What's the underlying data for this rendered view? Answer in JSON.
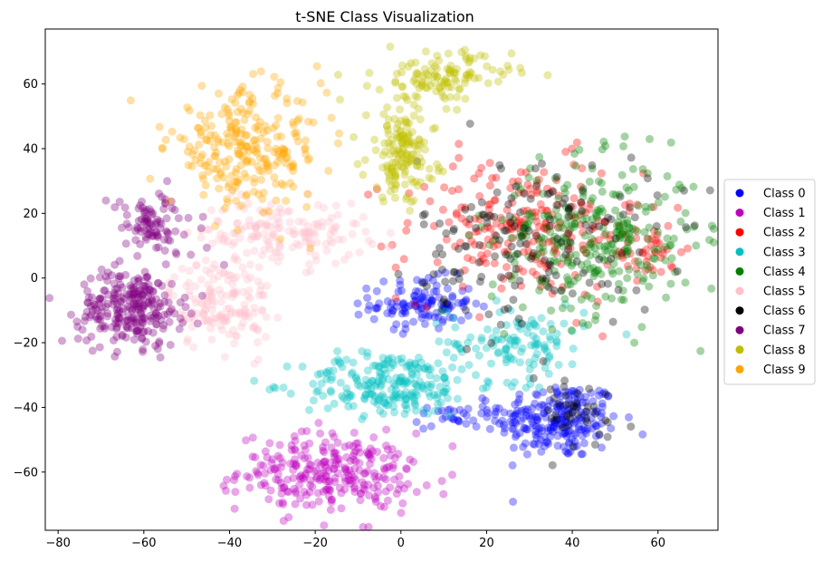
{
  "chart_data": {
    "type": "scatter",
    "title": "t-SNE Class Visualization",
    "xlabel": "",
    "ylabel": "",
    "xlim": [
      -83,
      74
    ],
    "ylim": [
      -78,
      77
    ],
    "x_ticks": [
      -80,
      -60,
      -40,
      -20,
      0,
      20,
      40,
      60
    ],
    "y_ticks": [
      -60,
      -40,
      -20,
      0,
      20,
      40,
      60
    ],
    "grid": false,
    "legend_position": "outside-right",
    "point_opacity": 0.35,
    "series": [
      {
        "name": "Class 0",
        "color": "#0000ff",
        "clusters": [
          {
            "cx": 37,
            "cy": -44,
            "sx": 7,
            "sy": 6,
            "n": 220
          },
          {
            "cx": 5,
            "cy": -8,
            "sx": 6,
            "sy": 4,
            "n": 120
          },
          {
            "cx": 15,
            "cy": -43,
            "sx": 6,
            "sy": 2,
            "n": 40
          }
        ]
      },
      {
        "name": "Class 1",
        "color": "#bf00bf",
        "clusters": [
          {
            "cx": -18,
            "cy": -60,
            "sx": 10,
            "sy": 6,
            "n": 240
          },
          {
            "cx": -5,
            "cy": -62,
            "sx": 5,
            "sy": 4,
            "n": 40
          }
        ]
      },
      {
        "name": "Class 2",
        "color": "#ff0000",
        "clusters": [
          {
            "cx": 28,
            "cy": 15,
            "sx": 14,
            "sy": 11,
            "n": 230
          },
          {
            "cx": 58,
            "cy": 8,
            "sx": 4,
            "sy": 4,
            "n": 40
          }
        ]
      },
      {
        "name": "Class 3",
        "color": "#00bfbf",
        "clusters": [
          {
            "cx": -3,
            "cy": -33,
            "sx": 10,
            "sy": 5,
            "n": 220
          },
          {
            "cx": 27,
            "cy": -20,
            "sx": 8,
            "sy": 6,
            "n": 120
          }
        ]
      },
      {
        "name": "Class 4",
        "color": "#008000",
        "clusters": [
          {
            "cx": 45,
            "cy": 12,
            "sx": 12,
            "sy": 12,
            "n": 300
          }
        ]
      },
      {
        "name": "Class 5",
        "color": "#ffc0cb",
        "clusters": [
          {
            "cx": -28,
            "cy": 14,
            "sx": 10,
            "sy": 5,
            "n": 160
          },
          {
            "cx": -42,
            "cy": -8,
            "sx": 6,
            "sy": 7,
            "n": 150
          }
        ]
      },
      {
        "name": "Class 6",
        "color": "#000000",
        "clusters": [
          {
            "cx": 32,
            "cy": 12,
            "sx": 14,
            "sy": 13,
            "n": 160
          },
          {
            "cx": 40,
            "cy": -42,
            "sx": 7,
            "sy": 6,
            "n": 40
          }
        ]
      },
      {
        "name": "Class 7",
        "color": "#800080",
        "clusters": [
          {
            "cx": -63,
            "cy": -9,
            "sx": 6,
            "sy": 6,
            "n": 260
          },
          {
            "cx": -58,
            "cy": 16,
            "sx": 5,
            "sy": 5,
            "n": 90
          }
        ]
      },
      {
        "name": "Class 8",
        "color": "#bfbf00",
        "clusters": [
          {
            "cx": 10,
            "cy": 62,
            "sx": 8,
            "sy": 4,
            "n": 120
          },
          {
            "cx": 0,
            "cy": 38,
            "sx": 4,
            "sy": 7,
            "n": 150
          }
        ]
      },
      {
        "name": "Class 9",
        "color": "#ffa500",
        "clusters": [
          {
            "cx": -36,
            "cy": 40,
            "sx": 9,
            "sy": 9,
            "n": 260
          }
        ]
      }
    ]
  }
}
